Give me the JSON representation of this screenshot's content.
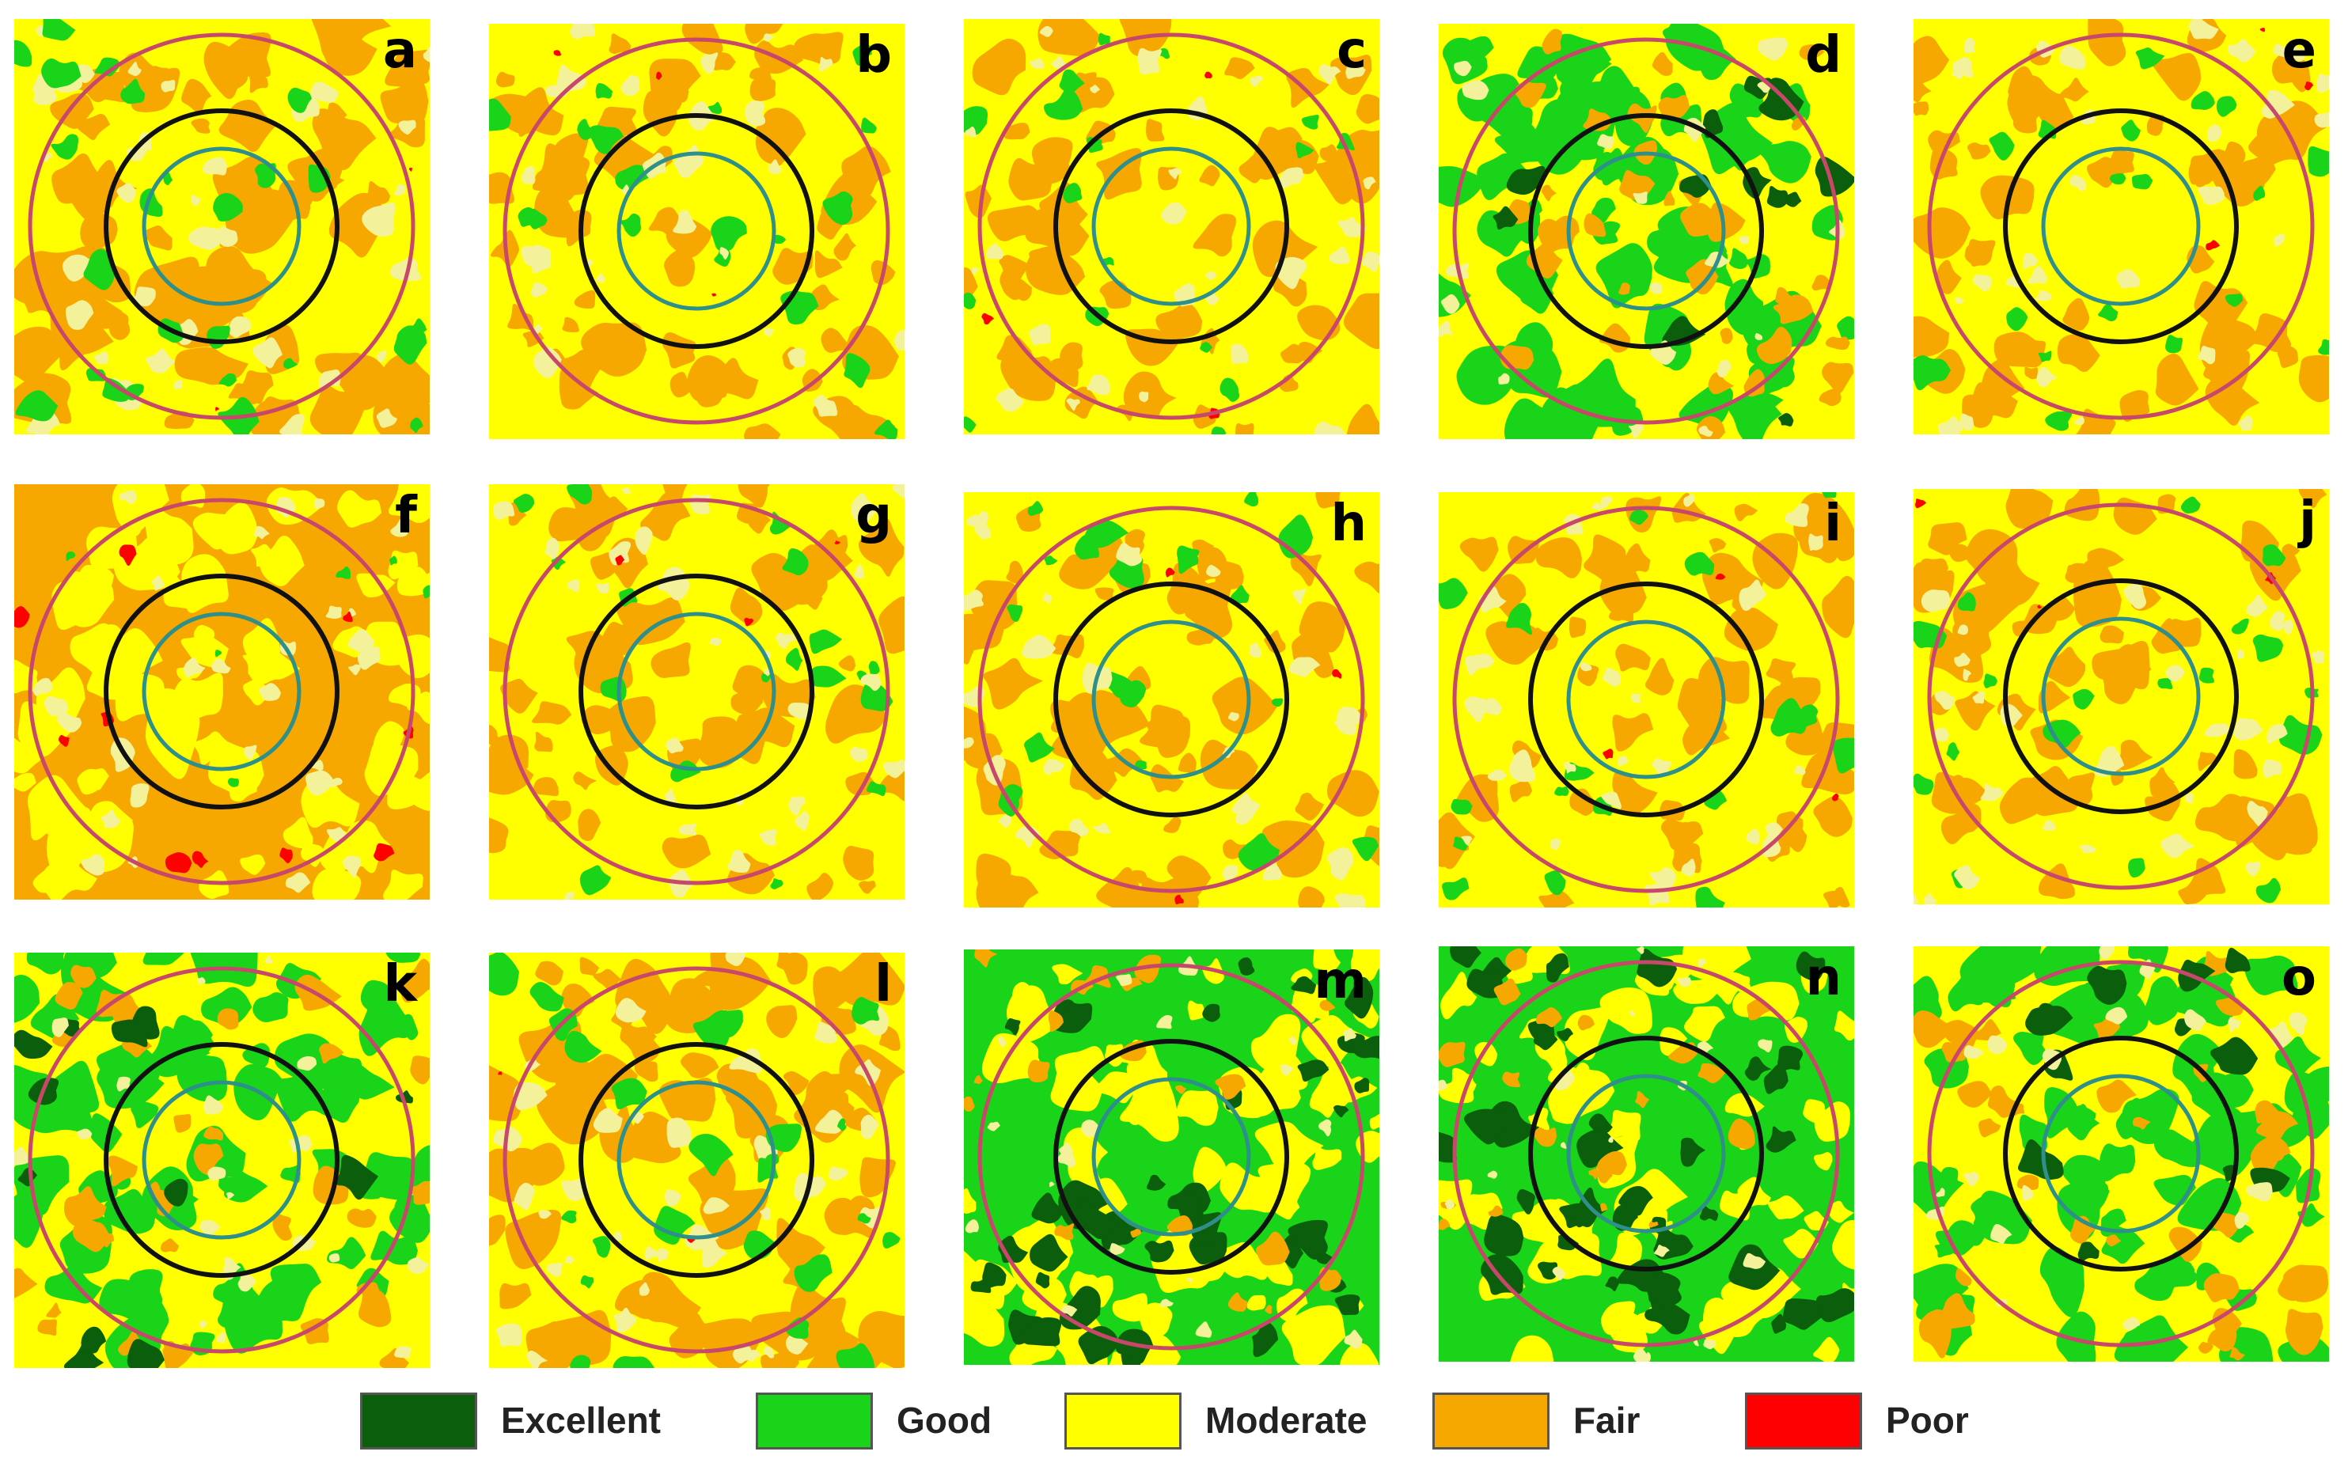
{
  "figure": {
    "panels": [
      {
        "label": "a",
        "theme": "m"
      },
      {
        "label": "b",
        "theme": "y"
      },
      {
        "label": "c",
        "theme": "y"
      },
      {
        "label": "d",
        "theme": "g"
      },
      {
        "label": "e",
        "theme": "y"
      },
      {
        "label": "f",
        "theme": "o"
      },
      {
        "label": "g",
        "theme": "y"
      },
      {
        "label": "h",
        "theme": "y"
      },
      {
        "label": "i",
        "theme": "y"
      },
      {
        "label": "j",
        "theme": "y"
      },
      {
        "label": "k",
        "theme": "g"
      },
      {
        "label": "l",
        "theme": "m"
      },
      {
        "label": "m",
        "theme": "G"
      },
      {
        "label": "n",
        "theme": "G"
      },
      {
        "label": "o",
        "theme": "g"
      }
    ],
    "ring_colors": {
      "outer": "#c7486a",
      "middle": "#111111",
      "inner": "#2f8f8a"
    },
    "legend": [
      {
        "label": "Excellent",
        "color": "#0b5e0b"
      },
      {
        "label": "Good",
        "color": "#19d419"
      },
      {
        "label": "Moderate",
        "color": "#ffff00"
      },
      {
        "label": "Fair",
        "color": "#f7a800"
      },
      {
        "label": "Poor",
        "color": "#ff0000"
      }
    ]
  }
}
